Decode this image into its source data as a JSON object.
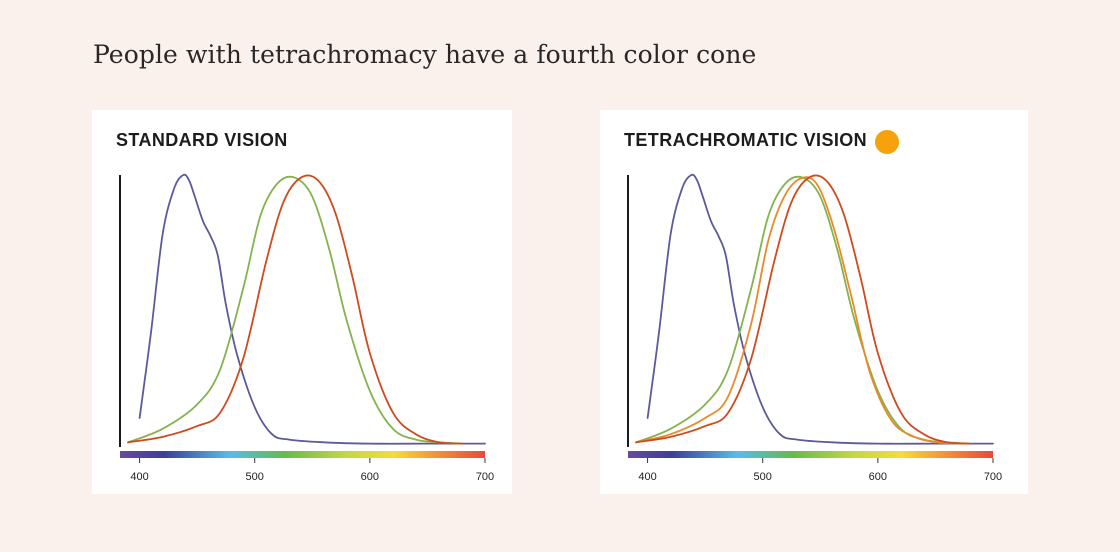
{
  "headline": "People with tetrachromacy have a fourth color cone",
  "colors": {
    "blue_cone": "#5b5a9b",
    "green_cone": "#86b24c",
    "red_cone": "#cf4a1f",
    "fourth_cone": "#e98a2a",
    "dot": "#f5a20c"
  },
  "chart_data": [
    {
      "type": "line",
      "title": "STANDARD VISION",
      "x_ticks": [
        400,
        500,
        600,
        700
      ],
      "xlim": [
        383,
        700
      ],
      "ylim": [
        0,
        1
      ],
      "spectrum_bar": true,
      "series": [
        {
          "color": "#5b5a9b",
          "x": [
            400,
            410,
            420,
            430,
            438,
            443,
            448,
            455,
            462,
            468,
            475,
            485,
            500,
            515,
            530,
            560,
            600,
            650,
            700
          ],
          "y": [
            0.1,
            0.42,
            0.78,
            0.95,
            1.0,
            0.98,
            0.92,
            0.83,
            0.77,
            0.7,
            0.52,
            0.33,
            0.14,
            0.04,
            0.02,
            0.01,
            0.005,
            0.005,
            0.005
          ]
        },
        {
          "color": "#86b24c",
          "x": [
            390,
            420,
            450,
            470,
            490,
            505,
            520,
            535,
            550,
            565,
            580,
            600,
            620,
            640,
            660,
            680
          ],
          "y": [
            0.01,
            0.06,
            0.15,
            0.28,
            0.58,
            0.85,
            0.97,
            0.99,
            0.92,
            0.72,
            0.46,
            0.2,
            0.06,
            0.02,
            0.01,
            0.005
          ]
        },
        {
          "color": "#cf4a1f",
          "x": [
            390,
            420,
            450,
            470,
            490,
            510,
            525,
            540,
            555,
            570,
            585,
            600,
            620,
            640,
            660,
            680
          ],
          "y": [
            0.01,
            0.03,
            0.07,
            0.12,
            0.32,
            0.68,
            0.9,
            0.99,
            0.98,
            0.86,
            0.62,
            0.34,
            0.12,
            0.04,
            0.01,
            0.005
          ]
        }
      ]
    },
    {
      "type": "line",
      "title": "TETRACHROMATIC VISION",
      "x_ticks": [
        400,
        500,
        600,
        700
      ],
      "xlim": [
        383,
        700
      ],
      "ylim": [
        0,
        1
      ],
      "spectrum_bar": true,
      "series": [
        {
          "color": "#5b5a9b",
          "x": [
            400,
            410,
            420,
            430,
            438,
            443,
            448,
            455,
            462,
            468,
            475,
            485,
            500,
            515,
            530,
            560,
            600,
            650,
            700
          ],
          "y": [
            0.1,
            0.42,
            0.78,
            0.95,
            1.0,
            0.98,
            0.92,
            0.83,
            0.77,
            0.7,
            0.52,
            0.33,
            0.14,
            0.04,
            0.02,
            0.01,
            0.005,
            0.005,
            0.005
          ]
        },
        {
          "color": "#86b24c",
          "x": [
            390,
            420,
            450,
            470,
            490,
            505,
            520,
            535,
            550,
            565,
            580,
            600,
            620,
            640,
            660,
            680
          ],
          "y": [
            0.01,
            0.06,
            0.15,
            0.28,
            0.58,
            0.85,
            0.97,
            0.99,
            0.92,
            0.72,
            0.46,
            0.2,
            0.06,
            0.02,
            0.01,
            0.005
          ]
        },
        {
          "color": "#e98a2a",
          "x": [
            390,
            420,
            450,
            470,
            490,
            505,
            520,
            535,
            548,
            562,
            577,
            593,
            612,
            632,
            652,
            675
          ],
          "y": [
            0.01,
            0.04,
            0.1,
            0.18,
            0.45,
            0.76,
            0.93,
            0.99,
            0.96,
            0.8,
            0.55,
            0.27,
            0.09,
            0.03,
            0.01,
            0.005
          ]
        },
        {
          "color": "#cf4a1f",
          "x": [
            390,
            420,
            450,
            470,
            490,
            510,
            525,
            540,
            555,
            570,
            585,
            600,
            620,
            640,
            660,
            680
          ],
          "y": [
            0.01,
            0.03,
            0.07,
            0.12,
            0.32,
            0.68,
            0.9,
            0.99,
            0.98,
            0.86,
            0.62,
            0.34,
            0.12,
            0.04,
            0.01,
            0.005
          ]
        }
      ]
    }
  ]
}
